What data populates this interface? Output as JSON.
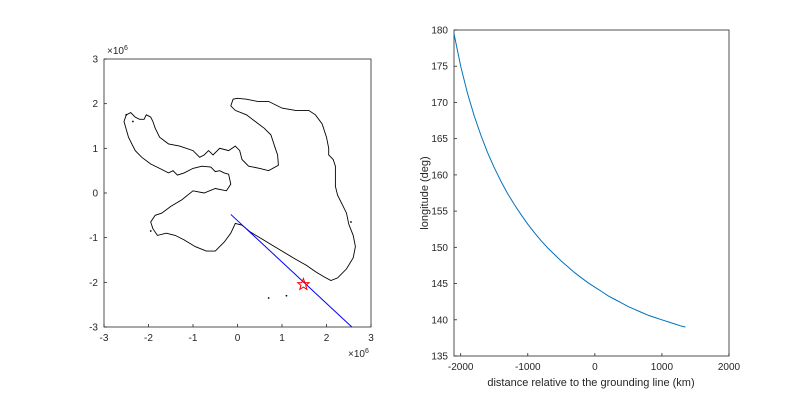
{
  "chart_data": [
    {
      "type": "line",
      "title": "",
      "xlabel": "",
      "ylabel": "",
      "x_exponent_label": "×10",
      "x_exponent_power": "6",
      "y_exponent_label": "×10",
      "y_exponent_power": "6",
      "xlim": [
        -3,
        3
      ],
      "ylim": [
        -3,
        3
      ],
      "xticks": [
        "-3",
        "-2",
        "-1",
        "0",
        "1",
        "2",
        "3"
      ],
      "yticks": [
        "-3",
        "-2",
        "-1",
        "0",
        "1",
        "2",
        "3"
      ],
      "grid": false,
      "colors": {
        "coastline": "#000000",
        "transect": "#0000ff",
        "marker": "#ff0000"
      },
      "series": [
        {
          "kind": "coastline",
          "x": [
            -2.55,
            -2.45,
            -2.3,
            -2.15,
            -1.95,
            -1.75,
            -1.55,
            -1.45,
            -1.35,
            -1.2,
            -1.0,
            -0.8,
            -0.6,
            -0.5,
            -0.4,
            -0.3,
            -0.2,
            -0.15,
            -0.25,
            -0.5,
            -0.75,
            -1.0,
            -1.25,
            -1.5,
            -1.7,
            -1.85,
            -1.95,
            -1.9,
            -1.8,
            -1.6,
            -1.4,
            -1.2,
            -0.95,
            -0.7,
            -0.5,
            -0.4,
            -0.3,
            -0.15,
            -0.05,
            0.1,
            0.3,
            0.55,
            0.8,
            1.05,
            1.3,
            1.55,
            1.75,
            1.95,
            2.1,
            2.25,
            2.45,
            2.6,
            2.65,
            2.6,
            2.5,
            2.45,
            2.35,
            2.25,
            2.2,
            2.2,
            2.2,
            2.15,
            2.05,
            2.05,
            2.0,
            1.9,
            1.75,
            1.6,
            1.3,
            1.0,
            0.7,
            0.45,
            0.2,
            0.0,
            -0.1,
            -0.15,
            -0.05,
            0.2,
            0.4,
            0.6,
            0.75,
            0.8,
            0.85,
            0.9,
            0.92,
            0.7,
            0.5,
            0.25,
            0.1,
            0.05,
            -0.05,
            -0.2,
            -0.4,
            -0.55,
            -0.65,
            -0.75,
            -0.85,
            -1.0,
            -1.3,
            -1.55,
            -1.75,
            -1.85,
            -1.9,
            -1.95,
            -2.05,
            -2.1,
            -2.2,
            -2.3,
            -2.4,
            -2.5,
            -2.55
          ],
          "y": [
            1.6,
            1.25,
            0.95,
            0.8,
            0.65,
            0.55,
            0.45,
            0.5,
            0.4,
            0.45,
            0.55,
            0.6,
            0.58,
            0.48,
            0.5,
            0.45,
            0.42,
            0.2,
            0.05,
            0.1,
            0.0,
            0.05,
            -0.15,
            -0.3,
            -0.45,
            -0.5,
            -0.65,
            -0.8,
            -0.95,
            -0.9,
            -0.95,
            -1.05,
            -1.2,
            -1.3,
            -1.3,
            -1.2,
            -1.1,
            -0.9,
            -0.68,
            -0.72,
            -0.88,
            -1.03,
            -1.18,
            -1.33,
            -1.48,
            -1.62,
            -1.76,
            -1.88,
            -1.96,
            -1.9,
            -1.7,
            -1.45,
            -1.2,
            -0.95,
            -0.7,
            -0.45,
            -0.25,
            -0.05,
            0.15,
            0.4,
            0.6,
            0.75,
            0.85,
            1.0,
            1.25,
            1.55,
            1.75,
            1.85,
            1.85,
            1.9,
            2.05,
            2.05,
            2.1,
            2.12,
            2.1,
            1.95,
            1.85,
            1.75,
            1.6,
            1.45,
            1.3,
            1.15,
            1.0,
            0.85,
            0.62,
            0.5,
            0.55,
            0.6,
            0.75,
            0.95,
            1.05,
            0.95,
            1.0,
            0.85,
            0.95,
            0.85,
            0.8,
            0.95,
            1.05,
            1.1,
            1.25,
            1.45,
            1.6,
            1.7,
            1.75,
            1.65,
            1.65,
            1.7,
            1.8,
            1.75,
            1.6
          ]
        },
        {
          "kind": "transect",
          "x": [
            -0.15,
            2.57
          ],
          "y": [
            -0.48,
            -3.0
          ]
        },
        {
          "kind": "marker",
          "x": [
            1.48
          ],
          "y": [
            -2.05
          ]
        }
      ]
    },
    {
      "type": "line",
      "title": "",
      "xlabel": "distance relative to the grounding line (km)",
      "ylabel": "longitude (deg)",
      "xlim": [
        -2100,
        2000
      ],
      "ylim": [
        135,
        180
      ],
      "xticks": [
        "-2000",
        "-1000",
        "0",
        "1000",
        "2000"
      ],
      "yticks": [
        "135",
        "140",
        "145",
        "150",
        "155",
        "160",
        "165",
        "170",
        "175",
        "180"
      ],
      "grid": false,
      "colors": {
        "line": "#0072bd"
      },
      "series": [
        {
          "x": [
            -2100,
            -2000,
            -1900,
            -1800,
            -1700,
            -1600,
            -1500,
            -1400,
            -1300,
            -1200,
            -1100,
            -1000,
            -900,
            -800,
            -700,
            -600,
            -500,
            -400,
            -300,
            -200,
            -100,
            0,
            100,
            200,
            300,
            400,
            500,
            600,
            700,
            800,
            900,
            1000,
            1100,
            1200,
            1300,
            1350
          ],
          "y": [
            179.5,
            175.0,
            171.3,
            168.2,
            165.5,
            163.1,
            161.0,
            159.1,
            157.4,
            155.9,
            154.5,
            153.2,
            152.0,
            150.9,
            149.9,
            149.0,
            148.1,
            147.3,
            146.5,
            145.8,
            145.1,
            144.5,
            143.9,
            143.3,
            142.8,
            142.3,
            141.8,
            141.4,
            141.0,
            140.6,
            140.3,
            140.0,
            139.7,
            139.4,
            139.1,
            139.0
          ]
        }
      ]
    }
  ]
}
